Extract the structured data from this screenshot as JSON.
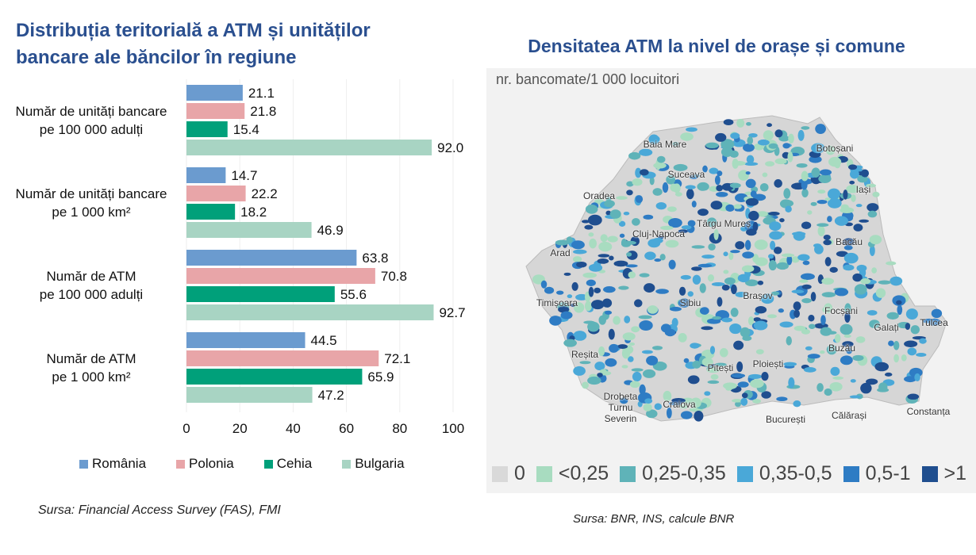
{
  "left": {
    "title_line1": "Distribuția teritorială a ATM și unităților",
    "title_line2": "bancare ale băncilor în regiune",
    "source": "Sursa: Financial Access Survey (FAS), FMI"
  },
  "chart_data": {
    "type": "bar",
    "orientation": "horizontal",
    "categories": [
      [
        "Număr de unități bancare",
        "pe 100 000 adulți"
      ],
      [
        "Număr de unități bancare",
        "pe 1 000 km²"
      ],
      [
        "Număr de ATM",
        "pe 100 000 adulți"
      ],
      [
        "Număr de ATM",
        "pe 1 000 km²"
      ]
    ],
    "series": [
      {
        "name": "România",
        "color": "#6b9bcf",
        "values": [
          21.1,
          14.7,
          63.8,
          44.5
        ]
      },
      {
        "name": "Polonia",
        "color": "#e8a5a8",
        "values": [
          21.8,
          22.2,
          70.8,
          72.1
        ]
      },
      {
        "name": "Cehia",
        "color": "#00a07a",
        "values": [
          15.4,
          18.2,
          55.6,
          65.9
        ]
      },
      {
        "name": "Bulgaria",
        "color": "#a8d4c3",
        "values": [
          92.0,
          46.9,
          92.7,
          47.2
        ]
      }
    ],
    "xlim": [
      0,
      100
    ],
    "xticks": [
      "0",
      "20",
      "40",
      "60",
      "80",
      "100"
    ],
    "legend": "bottom"
  },
  "right": {
    "title": "Densitatea ATM la nivel de orașe și comune",
    "subtitle": "nr. bancomate/1 000 locuitori",
    "source": "Sursa: BNR, INS, calcule BNR",
    "legend": [
      {
        "label": "0",
        "color": "#d9d9d9"
      },
      {
        "label": "<0,25",
        "color": "#a8dcc0"
      },
      {
        "label": "0,25-0,35",
        "color": "#5fb3b8"
      },
      {
        "label": "0,35-0,5",
        "color": "#4aa8d8"
      },
      {
        "label": "0,5-1",
        "color": "#2e7cc4"
      },
      {
        "label": ">1",
        "color": "#1f4e8f"
      }
    ],
    "cities": [
      "Baia Mare",
      "Botoșani",
      "Suceava",
      "Iași",
      "Oradea",
      "Târgu Mureș",
      "Cluj-Napoca",
      "Bacău",
      "Arad",
      "Timișoara",
      "Sibiu",
      "Brașov",
      "Focșani",
      "Galați",
      "Tulcea",
      "Reșita",
      "Ploiești",
      "Buzău",
      "Pitești",
      "Drobeta Turnu Severin",
      "Craiova",
      "București",
      "Călărași",
      "Constanța"
    ]
  }
}
